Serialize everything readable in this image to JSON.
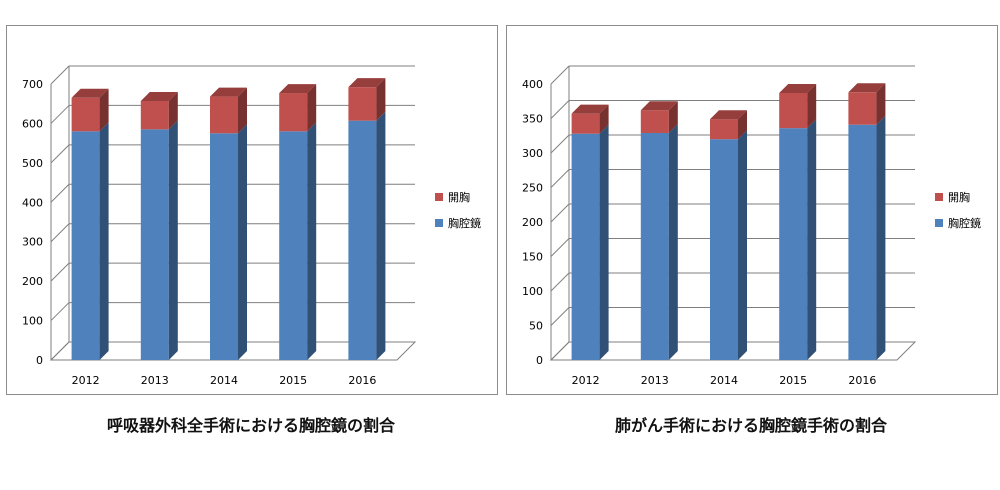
{
  "chart_data": [
    {
      "type": "bar",
      "stacked": true,
      "style": "3d-column",
      "categories": [
        "2012",
        "2013",
        "2014",
        "2015",
        "2016"
      ],
      "series": [
        {
          "name": "胸腔鏡",
          "values": [
            580,
            585,
            575,
            580,
            607
          ],
          "color": "#4f81bd"
        },
        {
          "name": "開胸",
          "values": [
            85,
            72,
            93,
            97,
            85
          ],
          "color": "#c0504d"
        }
      ],
      "ylim": [
        0,
        700
      ],
      "yticks": [
        "0",
        "100",
        "200",
        "300",
        "400",
        "500",
        "600",
        "700"
      ],
      "grid": true,
      "legend_position": "right",
      "caption": "呼吸器外科全手術における胸腔鏡の割合"
    },
    {
      "type": "bar",
      "stacked": true,
      "style": "3d-column",
      "categories": [
        "2012",
        "2013",
        "2014",
        "2015",
        "2016"
      ],
      "series": [
        {
          "name": "胸腔鏡",
          "values": [
            328,
            329,
            320,
            336,
            341
          ],
          "color": "#4f81bd"
        },
        {
          "name": "開胸",
          "values": [
            29,
            33,
            29,
            51,
            47
          ],
          "color": "#c0504d"
        }
      ],
      "ylim": [
        0,
        400
      ],
      "yticks": [
        "0",
        "50",
        "100",
        "150",
        "200",
        "250",
        "300",
        "350",
        "400"
      ],
      "grid": true,
      "legend_position": "right",
      "caption": "肺がん手術における胸腔鏡手術の割合"
    }
  ]
}
